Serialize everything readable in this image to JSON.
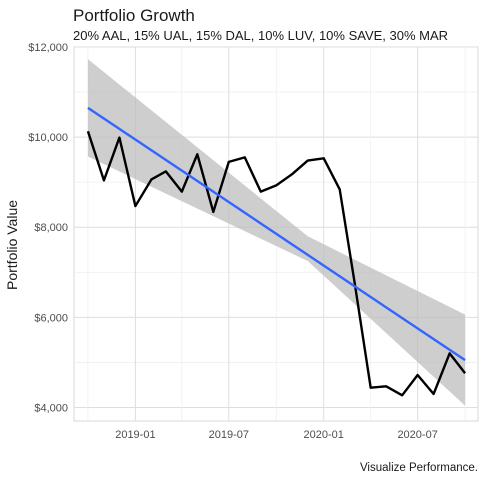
{
  "chart_data": {
    "type": "line",
    "title": "Portfolio Growth",
    "subtitle": "20% AAL, 15% UAL, 15% DAL, 10% LUV, 10% SAVE, 30% MAR",
    "caption": "Visualize Performance.",
    "xlabel": "",
    "ylabel": "Portfolio Value",
    "x_ticks": [
      "2019-01",
      "2019-07",
      "2020-01",
      "2020-07"
    ],
    "y_ticks": [
      "$4,000",
      "$6,000",
      "$8,000",
      "$10,000",
      "$12,000"
    ],
    "xlim": [
      "2018-09-04",
      "2020-10-26"
    ],
    "ylim": [
      3700,
      12000
    ],
    "grid": true,
    "series": [
      {
        "color": "#000000",
        "x": [
          "2018-10-01",
          "2018-11-01",
          "2018-12-01",
          "2019-01-01",
          "2019-02-01",
          "2019-03-01",
          "2019-04-01",
          "2019-05-01",
          "2019-06-01",
          "2019-07-01",
          "2019-08-01",
          "2019-09-01",
          "2019-10-01",
          "2019-11-01",
          "2019-12-01",
          "2020-01-01",
          "2020-02-01",
          "2020-03-01",
          "2020-04-01",
          "2020-05-01",
          "2020-06-01",
          "2020-07-01",
          "2020-08-01",
          "2020-09-01",
          "2020-10-01"
        ],
        "values": [
          10130,
          9040,
          9990,
          8470,
          9060,
          9240,
          8790,
          9620,
          8340,
          9450,
          9550,
          8790,
          8930,
          9180,
          9480,
          9530,
          8840,
          6760,
          4440,
          4470,
          4270,
          4720,
          4300,
          5200,
          4760
        ]
      }
    ],
    "trend": {
      "color": "#3366FF",
      "start": {
        "x": "2018-10-01",
        "y": 10650
      },
      "end": {
        "x": "2020-10-01",
        "y": 5050
      },
      "band_color": "#BEBEBE",
      "band_upper": [
        {
          "x": "2018-10-01",
          "y": 11730
        },
        {
          "x": "2019-12-01",
          "y": 7800
        },
        {
          "x": "2020-10-01",
          "y": 6060
        }
      ],
      "band_lower": [
        {
          "x": "2018-10-01",
          "y": 9570
        },
        {
          "x": "2019-12-01",
          "y": 7250
        },
        {
          "x": "2020-10-01",
          "y": 4040
        }
      ]
    }
  }
}
